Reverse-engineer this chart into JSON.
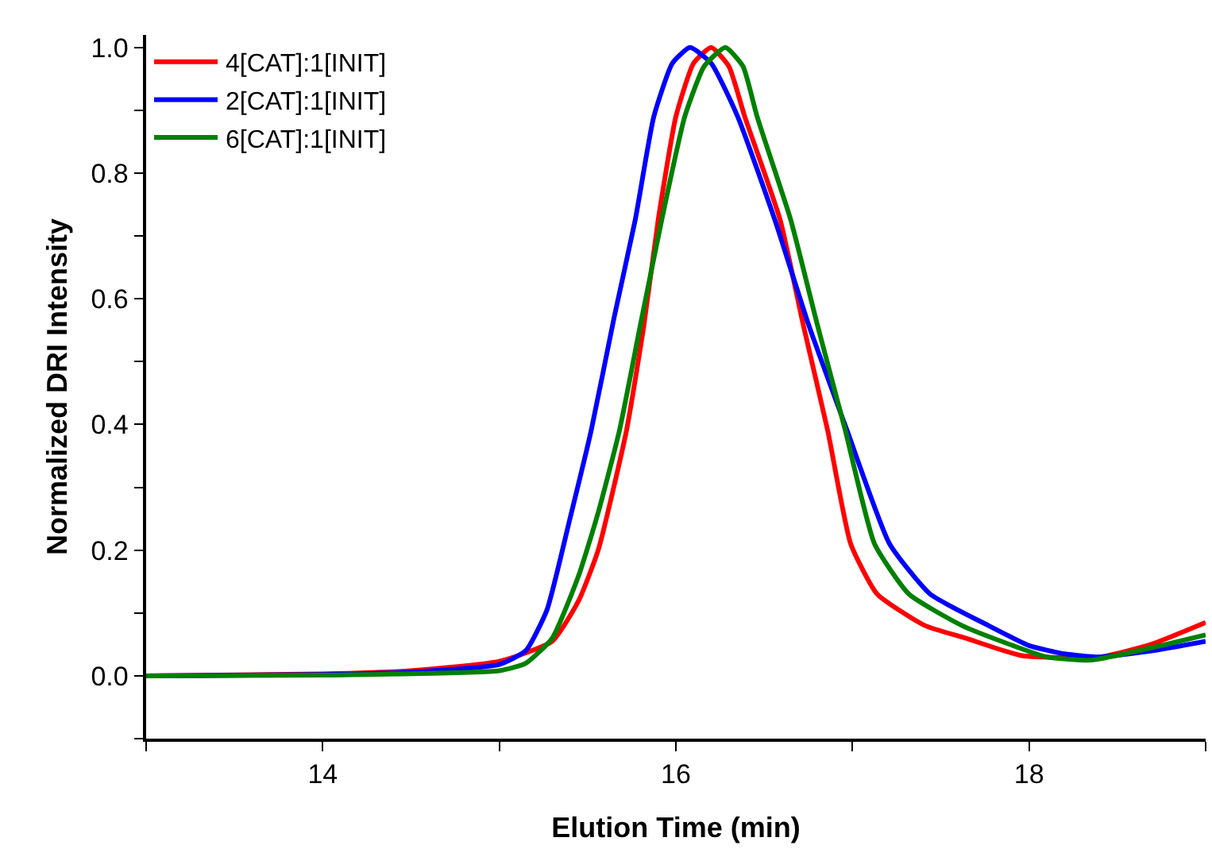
{
  "chart_data": {
    "type": "line",
    "xlabel": "Elution Time (min)",
    "ylabel": "Normalized DRI Intensity",
    "xlim": [
      13,
      19
    ],
    "ylim": [
      -0.1,
      1.02
    ],
    "xticks": [
      {
        "value": 13,
        "label": null
      },
      14,
      {
        "value": 15,
        "label": null
      },
      16,
      {
        "value": 17,
        "label": null
      },
      18,
      {
        "value": 19,
        "label": null
      }
    ],
    "yticks": [
      {
        "value": -0.1,
        "label": null
      },
      {
        "value": 0,
        "label": "0.0"
      },
      {
        "value": 0.1,
        "label": null
      },
      0.2,
      {
        "value": 0.3,
        "label": null
      },
      0.4,
      {
        "value": 0.5,
        "label": null
      },
      0.6,
      {
        "value": 0.7,
        "label": null
      },
      0.8,
      {
        "value": 0.9,
        "label": null
      },
      {
        "value": 1.0,
        "label": "1.0"
      }
    ],
    "legend": "top left",
    "marker": "none",
    "line_style": "solid",
    "series": [
      {
        "name": "4[CAT]:1[INIT]",
        "color": "#ff0000",
        "x": [
          13,
          14,
          14.5,
          15.0,
          15.3,
          15.45,
          15.56,
          15.72,
          15.82,
          15.9,
          16.0,
          16.1,
          16.2,
          16.3,
          16.39,
          16.59,
          16.72,
          16.86,
          16.99,
          17.14,
          17.41,
          17.64,
          17.96,
          18.4,
          18.69,
          19
        ],
        "values": [
          0,
          0.003,
          0.008,
          0.023,
          0.055,
          0.12,
          0.2,
          0.39,
          0.56,
          0.726,
          0.89,
          0.975,
          1.0,
          0.97,
          0.89,
          0.726,
          0.56,
          0.39,
          0.21,
          0.13,
          0.08,
          0.06,
          0.032,
          0.03,
          0.05,
          0.085
        ]
      },
      {
        "name": "2[CAT]:1[INIT]",
        "color": "#0000ff",
        "x": [
          13,
          14,
          14.5,
          15.0,
          15.15,
          15.27,
          15.4,
          15.52,
          15.65,
          15.77,
          15.875,
          15.98,
          16.08,
          16.2,
          16.35,
          16.56,
          16.75,
          16.97,
          17.21,
          17.44,
          17.77,
          18.0,
          18.2,
          18.4,
          18.7,
          19
        ],
        "values": [
          0,
          0.002,
          0.006,
          0.018,
          0.04,
          0.105,
          0.25,
          0.39,
          0.57,
          0.726,
          0.89,
          0.975,
          1.0,
          0.975,
          0.89,
          0.726,
          0.56,
          0.39,
          0.21,
          0.13,
          0.08,
          0.048,
          0.035,
          0.03,
          0.04,
          0.055
        ]
      },
      {
        "name": "6[CAT]:1[INIT]",
        "color": "#008000",
        "x": [
          13,
          14,
          15.0,
          15.15,
          15.3,
          15.45,
          15.56,
          15.68,
          15.8,
          15.92,
          16.05,
          16.16,
          16.28,
          16.38,
          16.46,
          16.65,
          16.8,
          16.96,
          17.125,
          17.32,
          17.62,
          17.91,
          18.1,
          18.35,
          18.7,
          19
        ],
        "values": [
          0,
          0.001,
          0.008,
          0.02,
          0.06,
          0.16,
          0.26,
          0.39,
          0.56,
          0.726,
          0.89,
          0.97,
          1.0,
          0.97,
          0.89,
          0.726,
          0.56,
          0.39,
          0.21,
          0.13,
          0.08,
          0.048,
          0.03,
          0.025,
          0.045,
          0.065
        ]
      }
    ]
  }
}
